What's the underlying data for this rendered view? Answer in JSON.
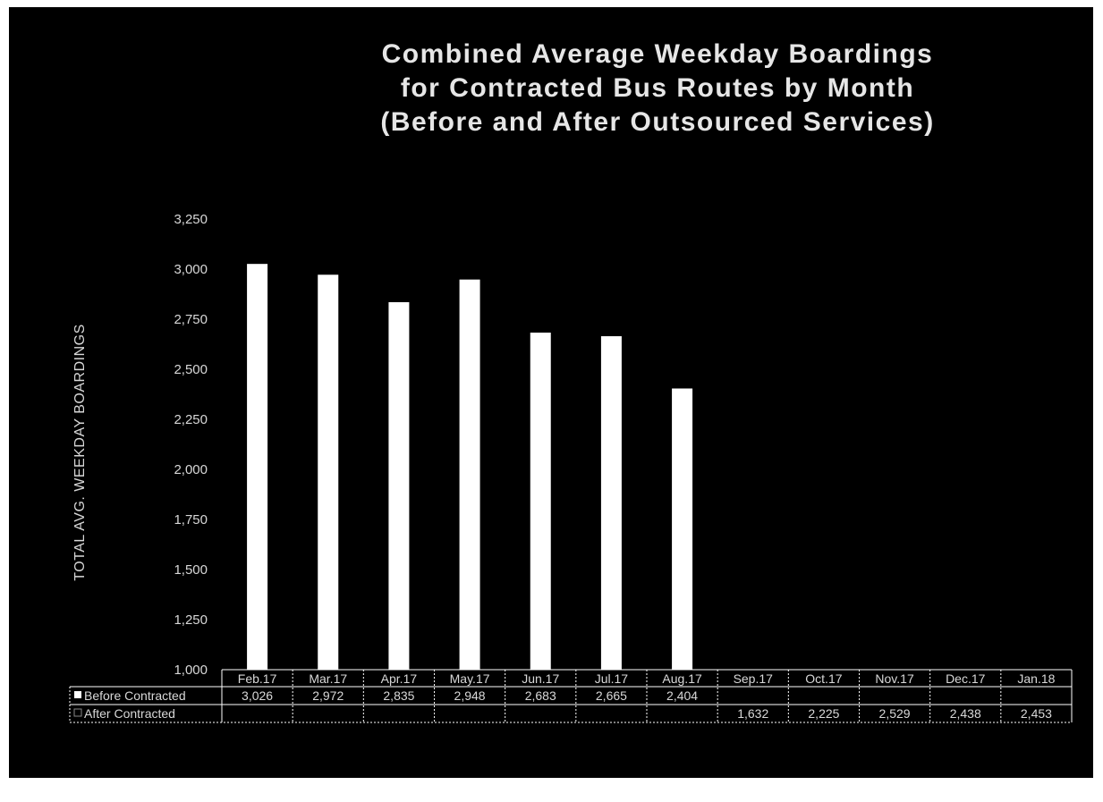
{
  "chart_data": {
    "type": "bar",
    "title_lines": [
      "Combined Average Weekday Boardings",
      "for Contracted Bus Routes by Month",
      "(Before and After Outsourced Services)"
    ],
    "ylabel": "TOTAL AVG. WEEKDAY BOARDINGS",
    "xlabel": "",
    "ylim": [
      1000,
      3250
    ],
    "y_ticks": [
      "1,000",
      "1,250",
      "1,500",
      "1,750",
      "2,000",
      "2,250",
      "2,500",
      "2,750",
      "3,000",
      "3,250"
    ],
    "categories": [
      "Feb.17",
      "Mar.17",
      "Apr.17",
      "May.17",
      "Jun.17",
      "Jul.17",
      "Aug.17",
      "Sep.17",
      "Oct.17",
      "Nov.17",
      "Dec.17",
      "Jan.18"
    ],
    "series": [
      {
        "name": "Before Contracted",
        "color": "#ffffff",
        "values": [
          3026,
          2972,
          2835,
          2948,
          2683,
          2665,
          2404,
          null,
          null,
          null,
          null,
          null
        ],
        "labels": [
          "3,026",
          "2,972",
          "2,835",
          "2,948",
          "2,683",
          "2,665",
          "2,404",
          "",
          "",
          "",
          "",
          ""
        ]
      },
      {
        "name": "After Contracted",
        "color": "#000000",
        "values": [
          null,
          null,
          null,
          null,
          null,
          null,
          null,
          1632,
          2225,
          2529,
          2438,
          2453
        ],
        "labels": [
          "",
          "",
          "",
          "",
          "",
          "",
          "",
          "1,632",
          "2,225",
          "2,529",
          "2,438",
          "2,453"
        ]
      }
    ],
    "legend": "data-table",
    "grid": false
  }
}
